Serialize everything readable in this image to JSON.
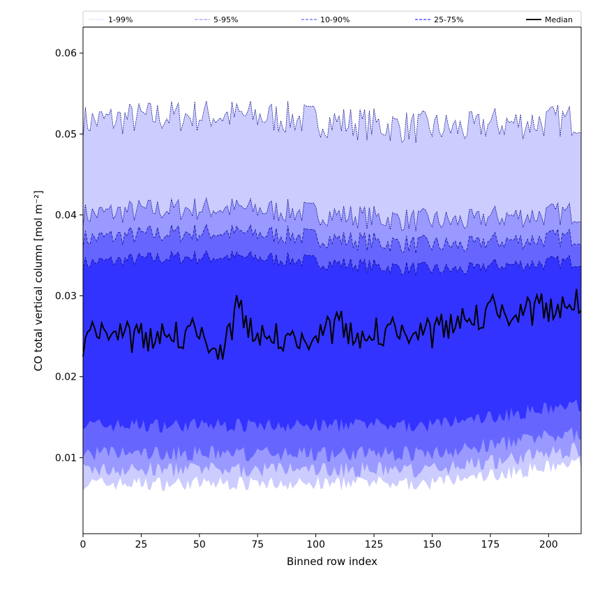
{
  "chart_data": {
    "type": "area",
    "xlabel": "Binned row index",
    "ylabel": "CO total vertical column [mol m⁻²]",
    "xlim": [
      0,
      214
    ],
    "ylim": [
      0.0006,
      0.0632
    ],
    "x_ticks": [
      0,
      25,
      50,
      75,
      100,
      125,
      150,
      175,
      200
    ],
    "y_ticks": [
      0.01,
      0.02,
      0.03,
      0.04,
      0.05,
      0.06
    ],
    "x_tick_labels": [
      "0",
      "25",
      "50",
      "75",
      "100",
      "125",
      "150",
      "175",
      "200"
    ],
    "y_tick_labels": [
      "0.01",
      "0.02",
      "0.03",
      "0.04",
      "0.05",
      "0.06"
    ],
    "grid": false,
    "legend_position": "top, spanning full width",
    "legend": [
      {
        "label": "1-99%",
        "style": "dotted",
        "color": "#ccccff"
      },
      {
        "label": "5-95%",
        "style": "dashdot",
        "color": "#9999ff"
      },
      {
        "label": "10-90%",
        "style": "dashed",
        "color": "#6666ff"
      },
      {
        "label": "25-75%",
        "style": "dashed",
        "color": "#3333ff"
      },
      {
        "label": "Median",
        "style": "solid",
        "color": "#000000"
      }
    ],
    "bands": [
      {
        "name": "1-99%",
        "color": "#ccccff",
        "outline": "#000080",
        "lower_mean": 0.0068,
        "upper_mean": 0.0515
      },
      {
        "name": "5-95%",
        "color": "#9999ff",
        "outline": "#000080",
        "lower_mean": 0.0085,
        "upper_mean": 0.04
      },
      {
        "name": "10-90%",
        "color": "#6666ff",
        "outline": "#000080",
        "lower_mean": 0.0105,
        "upper_mean": 0.037
      },
      {
        "name": "25-75%",
        "color": "#3333ff",
        "outline": "#000080",
        "lower_mean": 0.014,
        "upper_mean": 0.034
      }
    ],
    "median": {
      "x": [
        0,
        10,
        20,
        30,
        40,
        50,
        60,
        66,
        75,
        85,
        90,
        100,
        110,
        120,
        126,
        135,
        150,
        165,
        175,
        185,
        195,
        205,
        214
      ],
      "y": [
        0.0245,
        0.026,
        0.025,
        0.0245,
        0.0255,
        0.0255,
        0.0225,
        0.0285,
        0.0245,
        0.0255,
        0.024,
        0.025,
        0.0265,
        0.024,
        0.026,
        0.0255,
        0.0255,
        0.027,
        0.0285,
        0.0275,
        0.0285,
        0.028,
        0.03
      ]
    }
  }
}
